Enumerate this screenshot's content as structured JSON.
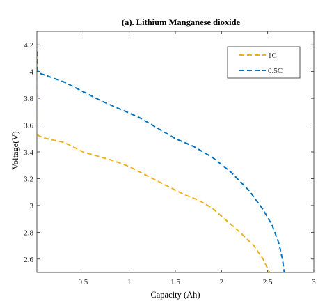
{
  "chart_data": {
    "type": "line",
    "title": "(a). Lithium Manganese dioxide",
    "xlabel": "Capacity (Ah)",
    "ylabel": "Voltage(V)",
    "xlim": [
      0,
      3
    ],
    "ylim": [
      2.5,
      4.3
    ],
    "xticks": [
      0.5,
      1,
      1.5,
      2,
      2.5,
      3
    ],
    "xtick_labels": [
      "0.5",
      "1",
      "1.5",
      "2",
      "2.5",
      "3"
    ],
    "yticks": [
      2.6,
      2.8,
      3.0,
      3.2,
      3.4,
      3.6,
      3.8,
      4.0,
      4.2
    ],
    "ytick_labels": [
      "2.6",
      "2.8",
      "3",
      "3.2",
      "3.4",
      "3.6",
      "3.8",
      "4",
      "4.2"
    ],
    "grid": false,
    "legend_position": "top-right",
    "series": [
      {
        "name": "1C",
        "color": "#EDB120",
        "line_style": "dashed",
        "x": [
          0,
          0,
          0,
          0.02,
          0.1,
          0.3,
          0.5,
          0.7,
          0.85,
          1.0,
          1.2,
          1.4,
          1.6,
          1.75,
          1.9,
          2.05,
          2.2,
          2.35,
          2.45,
          2.52
        ],
        "y": [
          4.1,
          3.7,
          3.53,
          3.52,
          3.5,
          3.47,
          3.4,
          3.36,
          3.33,
          3.29,
          3.22,
          3.15,
          3.08,
          3.04,
          2.98,
          2.89,
          2.8,
          2.7,
          2.6,
          2.5
        ]
      },
      {
        "name": "0.5C",
        "color": "#0072BD",
        "line_style": "dashed",
        "x": [
          0,
          0,
          0.02,
          0.1,
          0.3,
          0.5,
          0.7,
          0.9,
          1.1,
          1.3,
          1.5,
          1.7,
          1.9,
          2.1,
          2.3,
          2.45,
          2.55,
          2.62,
          2.66,
          2.68
        ],
        "y": [
          4.15,
          4.02,
          3.99,
          3.97,
          3.92,
          3.85,
          3.78,
          3.72,
          3.66,
          3.58,
          3.5,
          3.44,
          3.36,
          3.25,
          3.11,
          2.97,
          2.85,
          2.72,
          2.6,
          2.5
        ]
      }
    ]
  }
}
